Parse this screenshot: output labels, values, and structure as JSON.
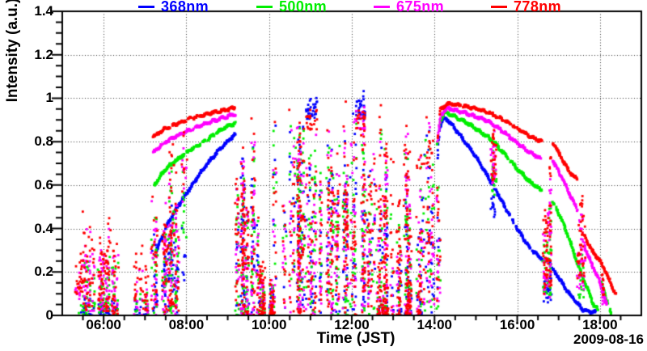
{
  "chart_data": {
    "type": "scatter",
    "title": "",
    "xlabel": "Time (JST)",
    "ylabel": "Intensity (a.u.)",
    "date_label": "2009-08-16",
    "x_unit": "hour of day (JST)",
    "x_range": [
      5.0,
      19.0
    ],
    "ylim": [
      0,
      1.4
    ],
    "grid": {
      "style": "dotted",
      "color": "#333333",
      "at": "major ticks"
    },
    "legend_position": "top",
    "x_major_ticks": [
      {
        "hour": 6,
        "label": "06:00"
      },
      {
        "hour": 8,
        "label": "08:00"
      },
      {
        "hour": 10,
        "label": "10:00"
      },
      {
        "hour": 12,
        "label": "12:00"
      },
      {
        "hour": 14,
        "label": "14:00"
      },
      {
        "hour": 16,
        "label": "16:00"
      },
      {
        "hour": 18,
        "label": "18:00"
      }
    ],
    "x_minor_step_hours": 0.5,
    "y_major_ticks": [
      {
        "value": 0,
        "label": "0"
      },
      {
        "value": 0.2,
        "label": "0.2"
      },
      {
        "value": 0.4,
        "label": "0.4"
      },
      {
        "value": 0.6,
        "label": "0.6"
      },
      {
        "value": 0.8,
        "label": "0.8"
      },
      {
        "value": 1.0,
        "label": "1"
      },
      {
        "value": 1.2,
        "label": "1.2"
      },
      {
        "value": 1.4,
        "label": "1.4"
      }
    ],
    "y_minor_step": 0.05,
    "marker_px": 2.8,
    "series": [
      {
        "name": "368nm",
        "color": "#0000ff",
        "marker": "square",
        "smooth_segments": [
          [
            [
              7.28,
              0.3
            ],
            [
              7.5,
              0.4
            ],
            [
              7.75,
              0.49
            ],
            [
              8.0,
              0.56
            ],
            [
              8.3,
              0.645
            ],
            [
              8.6,
              0.72
            ],
            [
              8.9,
              0.785
            ],
            [
              9.05,
              0.81
            ],
            [
              9.18,
              0.835
            ]
          ],
          [
            [
              14.07,
              0.72
            ],
            [
              14.12,
              0.855
            ],
            [
              14.2,
              0.91
            ],
            [
              14.35,
              0.895
            ],
            [
              14.6,
              0.835
            ],
            [
              15.0,
              0.73
            ],
            [
              15.3,
              0.635
            ],
            [
              15.45,
              0.59
            ],
            [
              15.7,
              0.5
            ],
            [
              16.0,
              0.4
            ],
            [
              16.3,
              0.31
            ],
            [
              16.45,
              0.285
            ],
            [
              16.6,
              0.26
            ]
          ],
          [
            [
              16.85,
              0.215
            ],
            [
              17.0,
              0.175
            ],
            [
              17.2,
              0.115
            ],
            [
              17.45,
              0.055
            ],
            [
              17.6,
              0.025
            ],
            [
              17.75,
              0.018
            ],
            [
              17.9,
              0.015
            ]
          ]
        ]
      },
      {
        "name": "500nm",
        "color": "#00ee00",
        "marker": "square",
        "smooth_segments": [
          [
            [
              7.22,
              0.6
            ],
            [
              7.5,
              0.675
            ],
            [
              8.0,
              0.75
            ],
            [
              8.5,
              0.81
            ],
            [
              8.9,
              0.862
            ],
            [
              9.18,
              0.885
            ]
          ],
          [
            [
              14.07,
              0.78
            ],
            [
              14.15,
              0.9
            ],
            [
              14.25,
              0.935
            ],
            [
              14.5,
              0.915
            ],
            [
              14.75,
              0.89
            ],
            [
              15.0,
              0.86
            ],
            [
              15.3,
              0.82
            ],
            [
              15.5,
              0.785
            ],
            [
              15.75,
              0.73
            ],
            [
              16.0,
              0.675
            ],
            [
              16.3,
              0.615
            ],
            [
              16.6,
              0.575
            ]
          ],
          [
            [
              16.85,
              0.52
            ],
            [
              17.05,
              0.455
            ],
            [
              17.25,
              0.355
            ],
            [
              17.5,
              0.215
            ],
            [
              17.7,
              0.12
            ],
            [
              17.85,
              0.05
            ],
            [
              17.95,
              0.025
            ]
          ],
          [
            [
              18.02,
              0.16
            ],
            [
              18.1,
              0.105
            ],
            [
              18.2,
              0.045
            ],
            [
              18.28,
              0.008
            ]
          ]
        ]
      },
      {
        "name": "675nm",
        "color": "#ff00ff",
        "marker": "square",
        "smooth_segments": [
          [
            [
              7.2,
              0.75
            ],
            [
              7.5,
              0.8
            ],
            [
              8.0,
              0.848
            ],
            [
              8.5,
              0.885
            ],
            [
              9.0,
              0.917
            ],
            [
              9.18,
              0.928
            ]
          ],
          [
            [
              14.07,
              0.8
            ],
            [
              14.15,
              0.92
            ],
            [
              14.3,
              0.955
            ],
            [
              14.6,
              0.94
            ],
            [
              15.0,
              0.915
            ],
            [
              15.3,
              0.895
            ],
            [
              15.5,
              0.868
            ],
            [
              15.8,
              0.825
            ],
            [
              16.0,
              0.795
            ],
            [
              16.3,
              0.75
            ],
            [
              16.6,
              0.72
            ]
          ],
          [
            [
              16.85,
              0.715
            ],
            [
              17.05,
              0.645
            ],
            [
              17.25,
              0.565
            ],
            [
              17.45,
              0.49
            ]
          ],
          [
            [
              17.62,
              0.32
            ],
            [
              17.8,
              0.235
            ],
            [
              17.95,
              0.175
            ],
            [
              18.08,
              0.1
            ],
            [
              18.17,
              0.04
            ]
          ]
        ]
      },
      {
        "name": "778nm",
        "color": "#ff0000",
        "marker": "square",
        "smooth_segments": [
          [
            [
              7.2,
              0.822
            ],
            [
              7.5,
              0.862
            ],
            [
              8.0,
              0.9
            ],
            [
              8.5,
              0.928
            ],
            [
              9.0,
              0.948
            ],
            [
              9.18,
              0.957
            ]
          ],
          [
            [
              14.07,
              0.82
            ],
            [
              14.15,
              0.945
            ],
            [
              14.3,
              0.975
            ],
            [
              14.6,
              0.968
            ],
            [
              15.0,
              0.952
            ],
            [
              15.3,
              0.935
            ],
            [
              15.55,
              0.912
            ],
            [
              15.8,
              0.885
            ],
            [
              16.0,
              0.862
            ],
            [
              16.3,
              0.825
            ],
            [
              16.6,
              0.8
            ]
          ],
          [
            [
              16.87,
              0.795
            ],
            [
              17.05,
              0.73
            ],
            [
              17.25,
              0.665
            ],
            [
              17.45,
              0.625
            ]
          ],
          [
            [
              17.62,
              0.37
            ],
            [
              17.8,
              0.3
            ],
            [
              18.0,
              0.25
            ],
            [
              18.15,
              0.2
            ],
            [
              18.28,
              0.135
            ],
            [
              18.38,
              0.1
            ]
          ]
        ]
      }
    ],
    "noise_bursts_note": "cloud-broken periods: vertical scatter columns; series arrays ordered [368nm,500nm,675nm,778nm] as [ymin,ymax,points_per_column] or null",
    "noise_bursts": [
      {
        "t0": 5.32,
        "t1": 5.45,
        "cols": 2,
        "bias": 1,
        "series": [
          null,
          [
            0,
            0.06,
            2
          ],
          [
            0.07,
            0.23,
            7
          ],
          [
            0.08,
            0.3,
            8
          ]
        ]
      },
      {
        "t0": 5.5,
        "t1": 6.18,
        "cols": 13,
        "bias": 1.3,
        "series": [
          [
            0,
            0.1,
            4
          ],
          [
            0,
            0.33,
            6
          ],
          [
            0.02,
            0.46,
            8
          ],
          [
            0.02,
            0.53,
            9
          ]
        ]
      },
      {
        "t0": 6.18,
        "t1": 6.35,
        "cols": 4,
        "bias": 1.2,
        "series": [
          [
            0,
            0.07,
            3
          ],
          [
            0,
            0.28,
            5
          ],
          [
            0,
            0.36,
            6
          ],
          [
            0,
            0.45,
            7
          ]
        ]
      },
      {
        "t0": 6.72,
        "t1": 7.08,
        "cols": 5,
        "bias": 1.2,
        "series": [
          [
            0,
            0.1,
            3
          ],
          [
            0,
            0.22,
            4
          ],
          [
            0,
            0.3,
            5
          ],
          [
            0.02,
            0.46,
            7
          ]
        ]
      },
      {
        "t0": 7.08,
        "t1": 7.78,
        "cols": 13,
        "bias": 1,
        "series": [
          [
            0,
            0.56,
            6
          ],
          [
            0,
            0.72,
            7
          ],
          [
            0,
            0.8,
            8
          ],
          [
            0,
            0.86,
            9
          ]
        ]
      },
      {
        "t0": 7.8,
        "t1": 7.97,
        "cols": 2,
        "bias": 1,
        "series": [
          [
            0.15,
            0.5,
            4
          ],
          [
            0.35,
            0.72,
            5
          ],
          [
            0.5,
            0.83,
            5
          ],
          [
            0.55,
            0.88,
            5
          ]
        ]
      },
      {
        "t0": 9.2,
        "t1": 9.75,
        "cols": 13,
        "bias": 1.1,
        "series": [
          [
            0,
            0.88,
            6
          ],
          [
            0,
            0.9,
            7
          ],
          [
            0,
            0.93,
            8
          ],
          [
            0,
            0.96,
            10
          ]
        ]
      },
      {
        "t0": 9.72,
        "t1": 10.1,
        "cols": 8,
        "bias": 1.8,
        "series": [
          [
            0,
            0.2,
            4
          ],
          [
            0,
            0.24,
            6
          ],
          [
            0,
            0.24,
            5
          ],
          [
            0,
            0.3,
            10
          ]
        ]
      },
      {
        "t0": 10.1,
        "t1": 11.6,
        "cols": 24,
        "bias": 1,
        "series": [
          [
            0,
            0.98,
            6
          ],
          [
            0,
            0.97,
            7
          ],
          [
            0,
            1.0,
            7
          ],
          [
            0,
            1.02,
            10
          ]
        ]
      },
      {
        "t0": 10.85,
        "t1": 11.3,
        "cols": 5,
        "bias": 1,
        "series": [
          [
            0.9,
            1.06,
            7
          ],
          null,
          null,
          [
            0.85,
            1.0,
            4
          ]
        ]
      },
      {
        "t0": 11.6,
        "t1": 12.6,
        "cols": 17,
        "bias": 1,
        "series": [
          [
            0,
            0.98,
            6
          ],
          [
            0,
            0.96,
            6
          ],
          [
            0,
            1.0,
            7
          ],
          [
            0,
            1.05,
            9
          ]
        ]
      },
      {
        "t0": 12.15,
        "t1": 12.4,
        "cols": 4,
        "bias": 1,
        "series": [
          [
            0.9,
            1.04,
            7
          ],
          null,
          [
            0.85,
            0.97,
            3
          ],
          [
            0.85,
            1.0,
            4
          ]
        ]
      },
      {
        "t0": 12.6,
        "t1": 13.65,
        "cols": 20,
        "bias": 2,
        "series": [
          [
            0,
            0.56,
            4
          ],
          [
            0,
            0.6,
            5
          ],
          [
            0,
            0.63,
            5
          ],
          [
            0,
            0.73,
            13
          ]
        ]
      },
      {
        "t0": 12.68,
        "t1": 12.84,
        "cols": 3,
        "bias": 1,
        "series": [
          [
            0.3,
            0.88,
            5
          ],
          [
            0.35,
            0.93,
            5
          ],
          [
            0.4,
            0.96,
            5
          ],
          [
            0.45,
            1.0,
            6
          ]
        ]
      },
      {
        "t0": 13.25,
        "t1": 13.42,
        "cols": 3,
        "bias": 1,
        "series": [
          [
            0.3,
            0.85,
            4
          ],
          [
            0.35,
            0.9,
            4
          ],
          [
            0.4,
            0.95,
            5
          ],
          [
            0.45,
            0.98,
            6
          ]
        ]
      },
      {
        "t0": 13.65,
        "t1": 14.12,
        "cols": 9,
        "bias": 1.2,
        "series": [
          [
            0,
            0.9,
            5
          ],
          [
            0.02,
            0.92,
            5
          ],
          [
            0.05,
            0.95,
            6
          ],
          [
            0.05,
            1.0,
            8
          ]
        ]
      },
      {
        "t0": 15.33,
        "t1": 15.45,
        "cols": 3,
        "bias": 1,
        "series": [
          [
            0.45,
            0.63,
            6
          ],
          [
            0.55,
            0.8,
            6
          ],
          [
            0.6,
            0.9,
            8
          ],
          [
            0.62,
            0.93,
            8
          ]
        ]
      },
      {
        "t0": 16.6,
        "t1": 16.83,
        "cols": 6,
        "bias": 1,
        "series": [
          [
            0.06,
            0.3,
            6
          ],
          [
            0.08,
            0.55,
            8
          ],
          [
            0.08,
            0.72,
            10
          ],
          [
            0.1,
            0.82,
            11
          ]
        ]
      },
      {
        "t0": 17.48,
        "t1": 17.62,
        "cols": 4,
        "bias": 1,
        "series": [
          null,
          [
            0.08,
            0.3,
            4
          ],
          [
            0.12,
            0.5,
            8
          ],
          [
            0.15,
            0.66,
            9
          ]
        ]
      },
      {
        "t0": 18.0,
        "t1": 18.12,
        "cols": 2,
        "bias": 1,
        "series": [
          null,
          null,
          [
            0.03,
            0.2,
            5
          ],
          [
            0.08,
            0.3,
            5
          ]
        ]
      }
    ]
  }
}
